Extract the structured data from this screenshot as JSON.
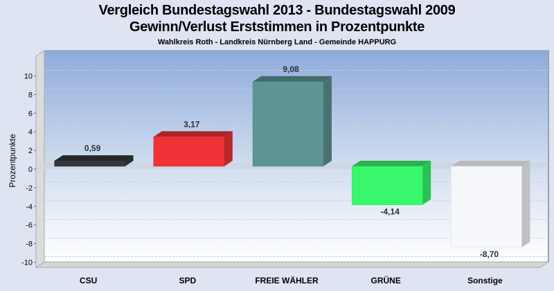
{
  "header": {
    "title_line1": "Vergleich Bundestagswahl 2013  - Bundestagswahl 2009",
    "title_line2": "Gewinn/Verlust Erststimmen in Prozentpunkte",
    "subtitle": "Wahlkreis Roth - Landkreis Nürnberg Land - Gemeinde HAPPURG"
  },
  "colors": {
    "background": "#dfe4f3",
    "plot_top": "#8eabdb",
    "plot_bottom": "#ffffff",
    "CSU": "#33363b",
    "SPD": "#ef3238",
    "FREIE WÄHLER": "#5e9494",
    "GRÜNE": "#39f76c",
    "Sonstige": "#f6f7fb"
  },
  "chart_data": {
    "type": "bar",
    "title": "Vergleich Bundestagswahl 2013  - Bundestagswahl 2009 / Gewinn/Verlust Erststimmen in Prozentpunkte",
    "subtitle": "Wahlkreis Roth - Landkreis Nürnberg Land - Gemeinde HAPPURG",
    "xlabel": "",
    "ylabel": "Prozentpunkte",
    "categories": [
      "CSU",
      "SPD",
      "FREIE WÄHLER",
      "GRÜNE",
      "Sonstige"
    ],
    "values": [
      0.59,
      3.17,
      9.08,
      -4.14,
      -8.7
    ],
    "value_labels": [
      "0,59",
      "3,17",
      "9,08",
      "-4,14",
      "-8,70"
    ],
    "bar_colors": [
      "#33363b",
      "#ef3238",
      "#5e9494",
      "#39f76c",
      "#f6f7fb"
    ],
    "ylim": [
      -11,
      11
    ],
    "yticks": [
      -10,
      -8,
      -6,
      -4,
      -2,
      0,
      2,
      4,
      6,
      8,
      10
    ],
    "grid": true,
    "legend": "none",
    "style": "3d"
  }
}
